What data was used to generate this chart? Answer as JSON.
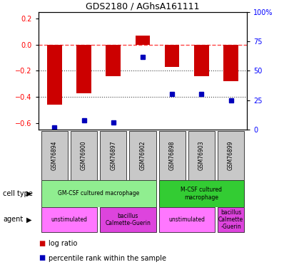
{
  "title": "GDS2180 / AGhsA161111",
  "samples": [
    "GSM76894",
    "GSM76900",
    "GSM76897",
    "GSM76902",
    "GSM76898",
    "GSM76903",
    "GSM76899"
  ],
  "log_ratio": [
    -0.46,
    -0.37,
    -0.24,
    0.07,
    -0.17,
    -0.24,
    -0.28
  ],
  "percentile_rank": [
    2,
    8,
    6,
    62,
    30,
    30,
    25
  ],
  "ylim_left": [
    -0.65,
    0.25
  ],
  "ylim_right": [
    0,
    100
  ],
  "left_ticks": [
    0.2,
    0.0,
    -0.2,
    -0.4,
    -0.6
  ],
  "right_ticks": [
    100,
    75,
    50,
    25,
    0
  ],
  "right_tick_labels": [
    "100%",
    "75",
    "50",
    "25",
    "0"
  ],
  "cell_type_groups": [
    {
      "label": "GM-CSF cultured macrophage",
      "start": 0,
      "end": 3,
      "color": "#90EE90"
    },
    {
      "label": "M-CSF cultured\nmacrophage",
      "start": 4,
      "end": 6,
      "color": "#33CC33"
    }
  ],
  "agent_groups": [
    {
      "label": "unstimulated",
      "start": 0,
      "end": 1,
      "color": "#FF77FF"
    },
    {
      "label": "bacillus\nCalmette-Guerin",
      "start": 2,
      "end": 3,
      "color": "#DD44DD"
    },
    {
      "label": "unstimulated",
      "start": 4,
      "end": 5,
      "color": "#FF77FF"
    },
    {
      "label": "bacillus\nCalmette\n-Guerin",
      "start": 6,
      "end": 6,
      "color": "#DD44DD"
    }
  ],
  "bar_color": "#CC0000",
  "dot_color": "#0000BB",
  "ref_line_color": "#FF4444",
  "grid_color": "#444444",
  "sample_bg_color": "#C8C8C8",
  "bar_width": 0.5
}
